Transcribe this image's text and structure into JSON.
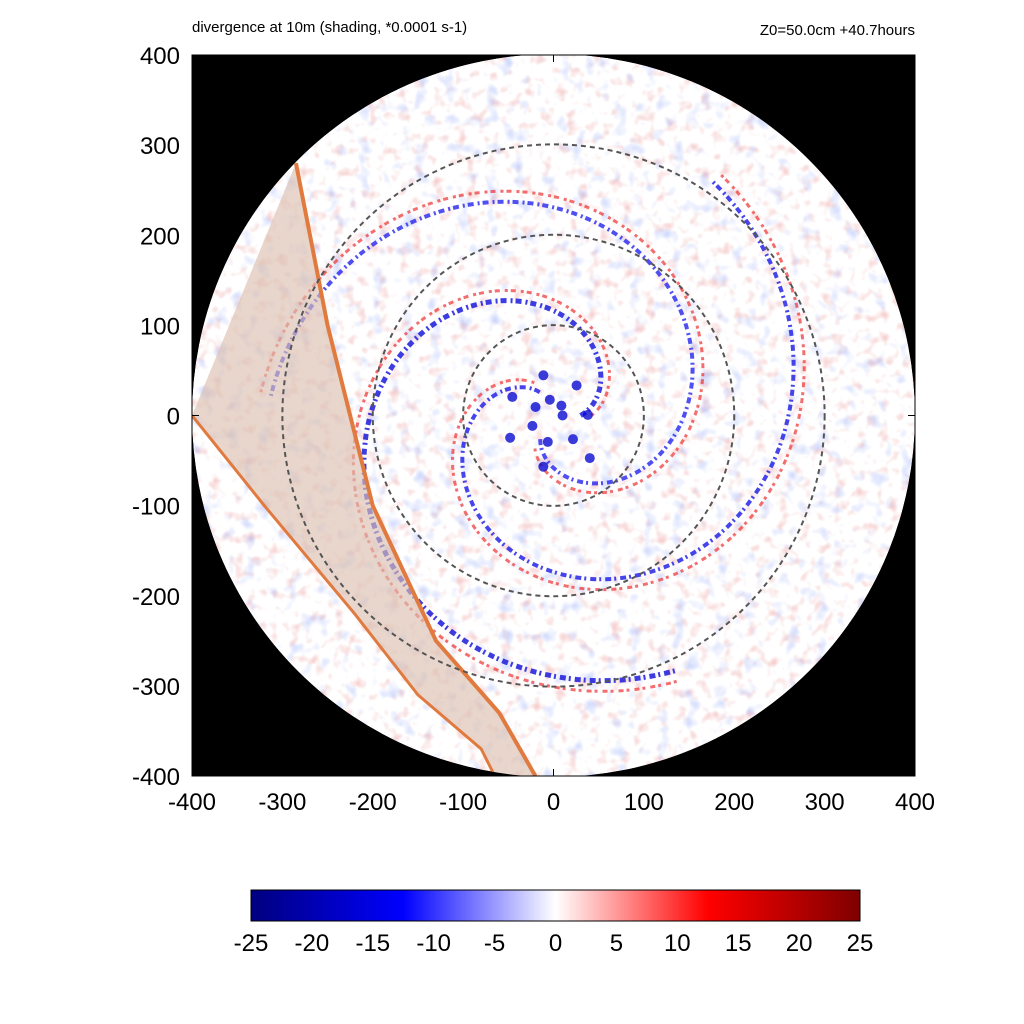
{
  "title_left": "divergence at 10m (shading, *0.0001 s-1)",
  "title_right": "Z0=50.0cm  +40.7hours",
  "chart_data": {
    "type": "heatmap",
    "title": "divergence at 10m (shading, *0.0001 s-1)",
    "subtitle": "Z0=50.0cm  +40.7hours",
    "xlim": [
      -400,
      400
    ],
    "ylim": [
      -400,
      400
    ],
    "x_ticks": [
      -400,
      -300,
      -200,
      -100,
      0,
      100,
      200,
      300,
      400
    ],
    "y_ticks": [
      -400,
      -300,
      -200,
      -100,
      0,
      100,
      200,
      300,
      400
    ],
    "x_tick_labels": [
      "-400",
      "-300",
      "-200",
      "-100",
      "0",
      "100",
      "200",
      "300",
      "400"
    ],
    "y_tick_labels": [
      "-400",
      "-300",
      "-200",
      "-100",
      "0",
      "100",
      "200",
      "300",
      "400"
    ],
    "domain_radius": 400,
    "range_rings": [
      100,
      200,
      300
    ],
    "colorbar": {
      "min": -25,
      "max": 25,
      "ticks": [
        -25,
        -20,
        -15,
        -10,
        -5,
        0,
        5,
        10,
        15,
        20,
        25
      ],
      "tick_labels": [
        "-25",
        "-20",
        "-15",
        "-10",
        "-5",
        "0",
        "5",
        "10",
        "15",
        "20",
        "25"
      ],
      "colors": [
        "#00007f",
        "#0000ff",
        "#ffffff",
        "#ff0000",
        "#7f0000"
      ]
    },
    "masked_color": "#000000",
    "overlay_band": {
      "upper_boundary": [
        [
          -285,
          280
        ],
        [
          -250,
          100
        ],
        [
          -200,
          -100
        ],
        [
          -130,
          -250
        ],
        [
          -60,
          -330
        ],
        [
          -20,
          -400
        ]
      ],
      "lower_boundary": [
        [
          -400,
          0
        ],
        [
          -320,
          -100
        ],
        [
          -220,
          -220
        ],
        [
          -150,
          -310
        ],
        [
          -80,
          -370
        ],
        [
          -65,
          -400
        ]
      ],
      "edge_color": "#e07a3f",
      "fill_color": "#dcc0b0"
    },
    "annotated_features": {
      "spiral_bands": "convergence (negative) bands spiraling inward toward the center",
      "center": [
        0,
        0
      ]
    }
  }
}
